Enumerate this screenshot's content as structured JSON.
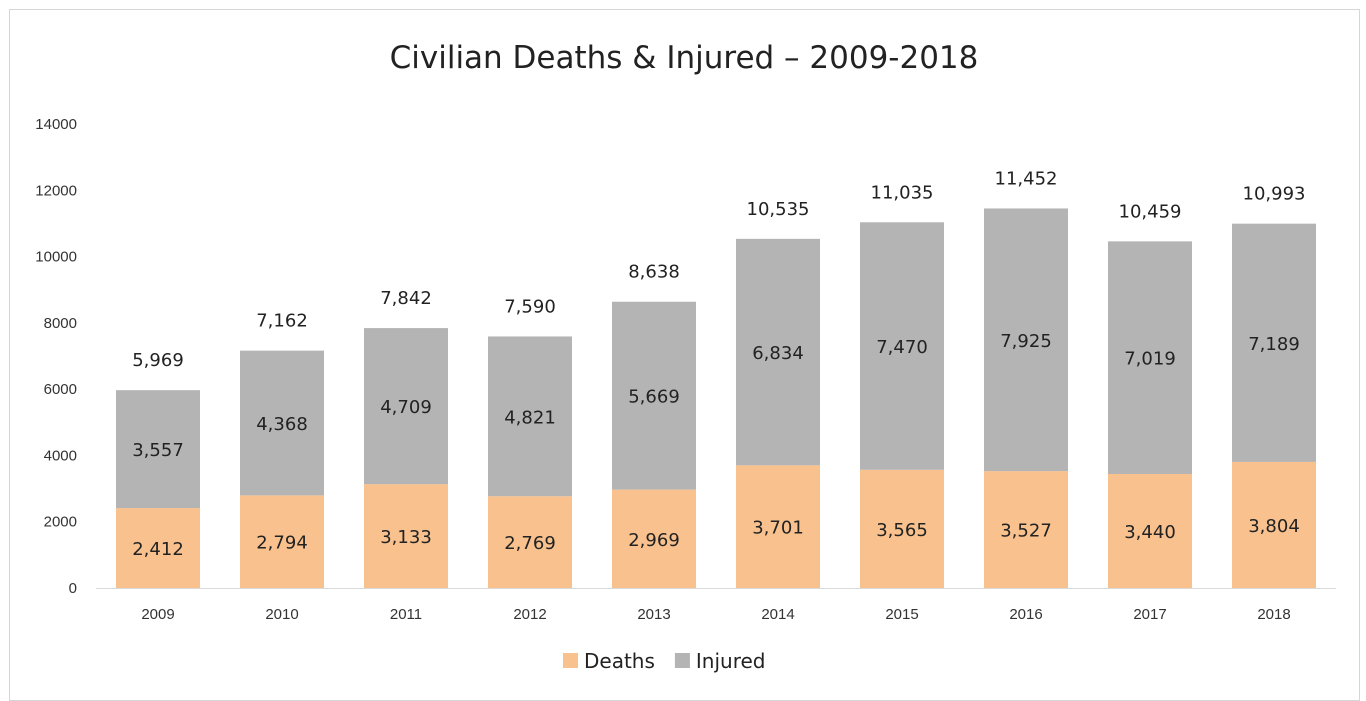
{
  "chart_data": {
    "type": "bar",
    "stacked": true,
    "title": "Civilian Deaths & Injured – 2009-2018",
    "xlabel": "",
    "ylabel": "",
    "categories": [
      "2009",
      "2010",
      "2011",
      "2012",
      "2013",
      "2014",
      "2015",
      "2016",
      "2017",
      "2018"
    ],
    "series": [
      {
        "name": "Deaths",
        "color": "#f8c18e",
        "values": [
          2412,
          2794,
          3133,
          2769,
          2969,
          3701,
          3565,
          3527,
          3440,
          3804
        ],
        "labels": [
          "2,412",
          "2,794",
          "3,133",
          "2,769",
          "2,969",
          "3,701",
          "3,565",
          "3,527",
          "3,440",
          "3,804"
        ]
      },
      {
        "name": "Injured",
        "color": "#b4b4b4",
        "values": [
          3557,
          4368,
          4709,
          4821,
          5669,
          6834,
          7470,
          7925,
          7019,
          7189
        ],
        "labels": [
          "3,557",
          "4,368",
          "4,709",
          "4,821",
          "5,669",
          "6,834",
          "7,470",
          "7,925",
          "7,019",
          "7,189"
        ]
      }
    ],
    "totals": [
      "5,969",
      "7,162",
      "7,842",
      "7,590",
      "8,638",
      "10,535",
      "11,035",
      "11,452",
      "10,459",
      "10,993"
    ],
    "ylim": [
      0,
      14000
    ],
    "yticks": [
      "0",
      "2000",
      "4000",
      "6000",
      "8000",
      "10000",
      "12000",
      "14000"
    ],
    "grid": false,
    "legend_position": "bottom"
  }
}
